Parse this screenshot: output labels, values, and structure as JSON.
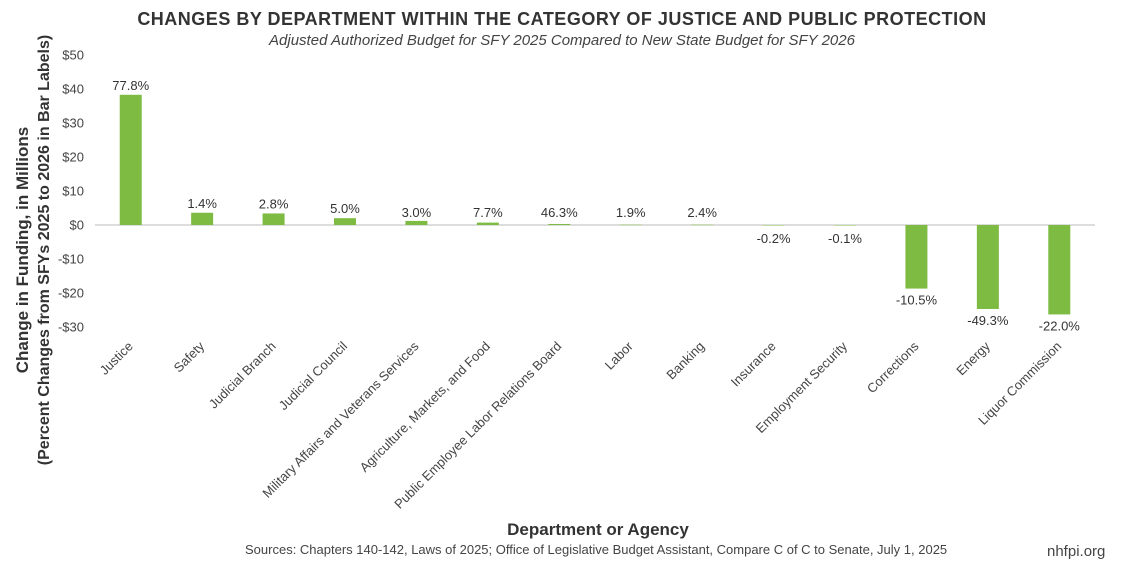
{
  "title": "CHANGES BY DEPARTMENT WITHIN THE CATEGORY OF JUSTICE AND PUBLIC PROTECTION",
  "subtitle": "Adjusted Authorized Budget for SFY 2025 Compared to New State Budget for SFY 2026",
  "sources": "Sources: Chapters 140-142, Laws of 2025; Office of Legislative Budget Assistant, Compare C of C to Senate, July 1, 2025",
  "brand": "nhfpi.org",
  "chart_data": {
    "type": "bar",
    "title": "CHANGES BY DEPARTMENT WITHIN THE CATEGORY OF JUSTICE AND PUBLIC PROTECTION",
    "subtitle": "Adjusted Authorized Budget for SFY 2025 Compared to New State Budget for SFY 2026",
    "xlabel": "Department or Agency",
    "ylabel": "Change in Funding, in Millions",
    "ylabel_sub": "(Percent Changes from SFYs 2025 to 2026 in Bar Labels)",
    "ylim": [
      -30,
      50
    ],
    "yticks": [
      50,
      40,
      30,
      20,
      10,
      0,
      -10,
      -20,
      -30
    ],
    "ytick_labels": [
      "$50",
      "$40",
      "$30",
      "$20",
      "$10",
      "$0",
      "-$10",
      "-$20",
      "-$30"
    ],
    "grid": false,
    "bar_color": "#7dbb42",
    "categories": [
      "Justice",
      "Safety",
      "Judicial Branch",
      "Judicial Council",
      "Military Affairs and Veterans Services",
      "Agriculture, Markets, and Food",
      "Public Employee Labor Relations Board",
      "Labor",
      "Banking",
      "Insurance",
      "Employment Security",
      "Corrections",
      "Energy",
      "Liquor Commission"
    ],
    "values": [
      38.3,
      3.6,
      3.4,
      2.0,
      1.2,
      0.7,
      0.3,
      0.1,
      0.1,
      -0.1,
      -0.1,
      -18.7,
      -24.7,
      -26.3
    ],
    "data_labels": [
      "77.8%",
      "1.4%",
      "2.8%",
      "5.0%",
      "3.0%",
      "7.7%",
      "46.3%",
      "1.9%",
      "2.4%",
      "-0.2%",
      "-0.1%",
      "-10.5%",
      "-49.3%",
      "-22.0%"
    ]
  }
}
